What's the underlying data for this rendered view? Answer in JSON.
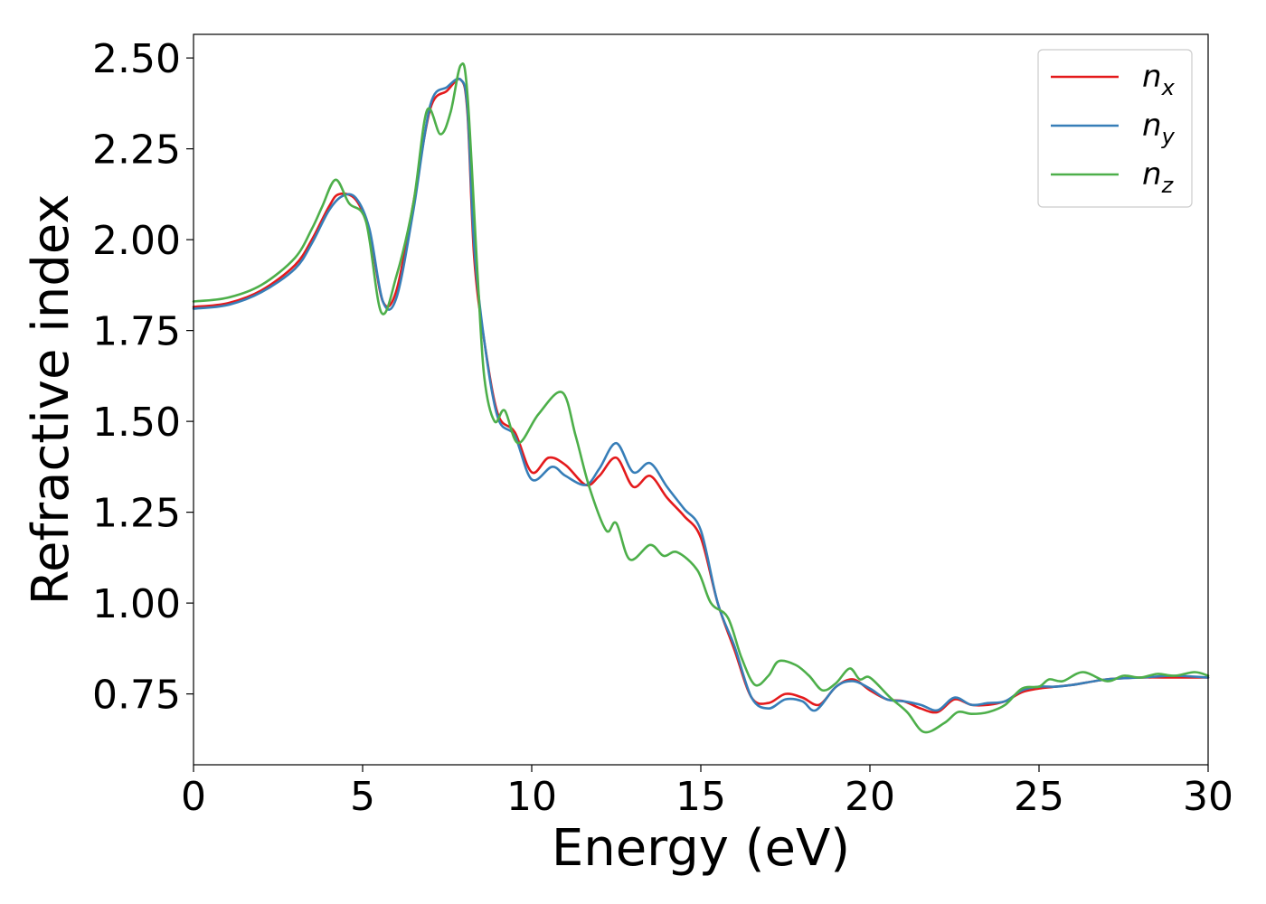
{
  "chart_data": {
    "type": "line",
    "title": "",
    "xlabel": "Energy (eV)",
    "ylabel": "Refractive index",
    "xlim": [
      0,
      30
    ],
    "ylim": [
      0.555,
      2.565
    ],
    "xticks": [
      0,
      5,
      10,
      15,
      20,
      25,
      30
    ],
    "xtick_labels": [
      "0",
      "5",
      "10",
      "15",
      "20",
      "25",
      "30"
    ],
    "yticks": [
      0.75,
      1.0,
      1.25,
      1.5,
      1.75,
      2.0,
      2.25,
      2.5
    ],
    "ytick_labels": [
      "0.75",
      "1.00",
      "1.25",
      "1.50",
      "1.75",
      "2.00",
      "2.25",
      "2.50"
    ],
    "grid": false,
    "legend_position": "top-right",
    "series": [
      {
        "name": "n",
        "subscript": "x",
        "color": "#e41a1c",
        "points": [
          [
            0,
            1.815
          ],
          [
            1,
            1.825
          ],
          [
            2,
            1.86
          ],
          [
            3,
            1.93
          ],
          [
            3.5,
            2.0
          ],
          [
            4,
            2.09
          ],
          [
            4.3,
            2.125
          ],
          [
            4.8,
            2.11
          ],
          [
            5.2,
            2.02
          ],
          [
            5.6,
            1.83
          ],
          [
            6,
            1.86
          ],
          [
            6.5,
            2.1
          ],
          [
            7,
            2.36
          ],
          [
            7.5,
            2.41
          ],
          [
            7.9,
            2.44
          ],
          [
            8.1,
            2.35
          ],
          [
            8.3,
            1.95
          ],
          [
            8.6,
            1.72
          ],
          [
            9,
            1.52
          ],
          [
            9.5,
            1.47
          ],
          [
            10,
            1.36
          ],
          [
            10.5,
            1.4
          ],
          [
            11,
            1.38
          ],
          [
            11.6,
            1.325
          ],
          [
            12,
            1.35
          ],
          [
            12.5,
            1.4
          ],
          [
            13,
            1.32
          ],
          [
            13.5,
            1.35
          ],
          [
            14,
            1.29
          ],
          [
            14.5,
            1.24
          ],
          [
            15,
            1.18
          ],
          [
            15.5,
            1.0
          ],
          [
            16,
            0.87
          ],
          [
            16.5,
            0.74
          ],
          [
            17,
            0.725
          ],
          [
            17.5,
            0.75
          ],
          [
            18,
            0.74
          ],
          [
            18.5,
            0.72
          ],
          [
            19,
            0.77
          ],
          [
            19.5,
            0.79
          ],
          [
            20,
            0.76
          ],
          [
            20.5,
            0.735
          ],
          [
            21,
            0.73
          ],
          [
            21.5,
            0.71
          ],
          [
            22,
            0.7
          ],
          [
            22.5,
            0.735
          ],
          [
            23,
            0.72
          ],
          [
            23.5,
            0.72
          ],
          [
            24,
            0.73
          ],
          [
            24.5,
            0.755
          ],
          [
            25,
            0.765
          ],
          [
            25.5,
            0.77
          ],
          [
            26,
            0.775
          ],
          [
            27,
            0.79
          ],
          [
            28,
            0.795
          ],
          [
            29,
            0.795
          ],
          [
            30,
            0.795
          ]
        ]
      },
      {
        "name": "n",
        "subscript": "y",
        "color": "#377eb8",
        "points": [
          [
            0,
            1.81
          ],
          [
            1,
            1.82
          ],
          [
            2,
            1.855
          ],
          [
            3,
            1.92
          ],
          [
            3.5,
            1.99
          ],
          [
            4,
            2.08
          ],
          [
            4.4,
            2.12
          ],
          [
            4.8,
            2.115
          ],
          [
            5.2,
            2.03
          ],
          [
            5.6,
            1.83
          ],
          [
            6,
            1.84
          ],
          [
            6.5,
            2.08
          ],
          [
            7,
            2.37
          ],
          [
            7.5,
            2.42
          ],
          [
            7.9,
            2.44
          ],
          [
            8.1,
            2.36
          ],
          [
            8.3,
            1.98
          ],
          [
            8.6,
            1.72
          ],
          [
            9,
            1.51
          ],
          [
            9.5,
            1.46
          ],
          [
            10,
            1.34
          ],
          [
            10.6,
            1.375
          ],
          [
            11,
            1.35
          ],
          [
            11.6,
            1.325
          ],
          [
            12,
            1.37
          ],
          [
            12.5,
            1.44
          ],
          [
            13,
            1.36
          ],
          [
            13.5,
            1.385
          ],
          [
            14,
            1.32
          ],
          [
            14.5,
            1.26
          ],
          [
            15,
            1.2
          ],
          [
            15.5,
            1.0
          ],
          [
            16,
            0.88
          ],
          [
            16.5,
            0.74
          ],
          [
            17,
            0.71
          ],
          [
            17.5,
            0.735
          ],
          [
            18,
            0.73
          ],
          [
            18.4,
            0.705
          ],
          [
            19,
            0.77
          ],
          [
            19.5,
            0.785
          ],
          [
            20,
            0.765
          ],
          [
            20.5,
            0.735
          ],
          [
            21,
            0.73
          ],
          [
            21.5,
            0.72
          ],
          [
            22,
            0.705
          ],
          [
            22.5,
            0.74
          ],
          [
            23,
            0.72
          ],
          [
            23.5,
            0.725
          ],
          [
            24,
            0.73
          ],
          [
            24.5,
            0.76
          ],
          [
            25,
            0.77
          ],
          [
            25.5,
            0.77
          ],
          [
            26,
            0.775
          ],
          [
            27,
            0.79
          ],
          [
            28,
            0.795
          ],
          [
            29,
            0.8
          ],
          [
            30,
            0.795
          ]
        ]
      },
      {
        "name": "n",
        "subscript": "z",
        "color": "#4daf4a",
        "points": [
          [
            0,
            1.83
          ],
          [
            1,
            1.84
          ],
          [
            2,
            1.875
          ],
          [
            3,
            1.95
          ],
          [
            3.5,
            2.03
          ],
          [
            3.8,
            2.09
          ],
          [
            4.2,
            2.165
          ],
          [
            4.6,
            2.1
          ],
          [
            5.1,
            2.05
          ],
          [
            5.55,
            1.8
          ],
          [
            6,
            1.9
          ],
          [
            6.5,
            2.1
          ],
          [
            6.9,
            2.355
          ],
          [
            7.3,
            2.29
          ],
          [
            7.6,
            2.35
          ],
          [
            7.9,
            2.48
          ],
          [
            8.1,
            2.4
          ],
          [
            8.4,
            1.9
          ],
          [
            8.6,
            1.62
          ],
          [
            8.9,
            1.5
          ],
          [
            9.2,
            1.53
          ],
          [
            9.6,
            1.44
          ],
          [
            10.2,
            1.52
          ],
          [
            10.9,
            1.58
          ],
          [
            11.3,
            1.46
          ],
          [
            11.7,
            1.32
          ],
          [
            12.2,
            1.2
          ],
          [
            12.5,
            1.22
          ],
          [
            12.9,
            1.12
          ],
          [
            13.5,
            1.16
          ],
          [
            13.9,
            1.13
          ],
          [
            14.3,
            1.14
          ],
          [
            14.9,
            1.09
          ],
          [
            15.3,
            1.0
          ],
          [
            15.8,
            0.96
          ],
          [
            16.2,
            0.85
          ],
          [
            16.6,
            0.775
          ],
          [
            17,
            0.8
          ],
          [
            17.3,
            0.84
          ],
          [
            17.8,
            0.83
          ],
          [
            18.2,
            0.8
          ],
          [
            18.6,
            0.76
          ],
          [
            19,
            0.78
          ],
          [
            19.4,
            0.82
          ],
          [
            19.7,
            0.79
          ],
          [
            20,
            0.795
          ],
          [
            20.6,
            0.74
          ],
          [
            21.1,
            0.7
          ],
          [
            21.6,
            0.645
          ],
          [
            22.2,
            0.67
          ],
          [
            22.6,
            0.7
          ],
          [
            23,
            0.695
          ],
          [
            23.5,
            0.7
          ],
          [
            24,
            0.72
          ],
          [
            24.5,
            0.765
          ],
          [
            25,
            0.77
          ],
          [
            25.3,
            0.79
          ],
          [
            25.7,
            0.785
          ],
          [
            26.3,
            0.81
          ],
          [
            27,
            0.785
          ],
          [
            27.5,
            0.8
          ],
          [
            28,
            0.795
          ],
          [
            28.5,
            0.805
          ],
          [
            29,
            0.8
          ],
          [
            29.6,
            0.81
          ],
          [
            30,
            0.8
          ]
        ]
      }
    ]
  }
}
